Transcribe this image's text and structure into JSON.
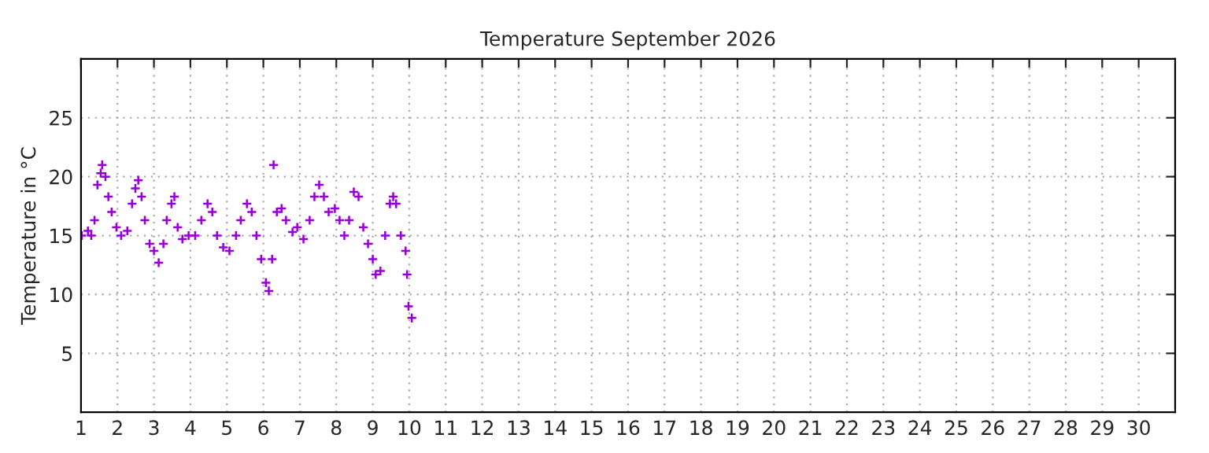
{
  "chart_data": {
    "type": "scatter",
    "title": "Temperature September 2026",
    "ylabel": "Temperature in °C",
    "xlim": [
      1,
      31
    ],
    "xticks": [
      1,
      2,
      3,
      4,
      5,
      6,
      7,
      8,
      9,
      10,
      11,
      12,
      13,
      14,
      15,
      16,
      17,
      18,
      19,
      20,
      21,
      22,
      23,
      24,
      25,
      26,
      27,
      28,
      29,
      30
    ],
    "ylim": [
      0,
      30
    ],
    "yticks": [
      5,
      10,
      15,
      20,
      25
    ],
    "grid": true,
    "marker": "cross",
    "series": [
      {
        "color": "#9400d3",
        "x": [
          1.02,
          1.19,
          1.28,
          1.37,
          1.45,
          1.54,
          1.58,
          1.67,
          1.75,
          1.84,
          1.97,
          2.1,
          2.27,
          2.4,
          2.49,
          2.57,
          2.66,
          2.75,
          2.88,
          3.0,
          3.13,
          3.26,
          3.35,
          3.48,
          3.56,
          3.65,
          3.78,
          3.95,
          4.13,
          4.3,
          4.47,
          4.6,
          4.73,
          4.9,
          5.07,
          5.25,
          5.38,
          5.55,
          5.68,
          5.81,
          5.94,
          6.07,
          6.15,
          6.24,
          6.28,
          6.37,
          6.5,
          6.62,
          6.8,
          6.93,
          7.1,
          7.27,
          7.4,
          7.53,
          7.66,
          7.79,
          7.96,
          8.09,
          8.22,
          8.35,
          8.48,
          8.61,
          8.74,
          8.87,
          9.0,
          9.08,
          9.21,
          9.34,
          9.47,
          9.56,
          9.64,
          9.77,
          9.9,
          9.94,
          9.98,
          10.07
        ],
        "values": [
          15,
          15.4,
          15,
          16.3,
          19.3,
          20.3,
          21,
          20,
          18.3,
          17,
          15.7,
          15,
          15.4,
          17.7,
          19,
          19.7,
          18.3,
          16.3,
          14.3,
          13.7,
          12.7,
          14.3,
          16.3,
          17.7,
          18.3,
          15.7,
          14.7,
          15,
          15,
          16.3,
          17.7,
          17,
          15,
          14,
          13.7,
          15,
          16.3,
          17.7,
          17,
          15,
          13,
          11,
          10.3,
          13,
          21,
          17,
          17.3,
          16.3,
          15.3,
          15.7,
          14.7,
          16.3,
          18.3,
          19.3,
          18.3,
          17,
          17.3,
          16.3,
          15,
          16.3,
          18.7,
          18.3,
          15.7,
          14.3,
          13,
          11.7,
          12,
          15,
          17.7,
          18.3,
          17.7,
          15,
          13.7,
          11.7,
          9,
          8
        ]
      }
    ]
  }
}
